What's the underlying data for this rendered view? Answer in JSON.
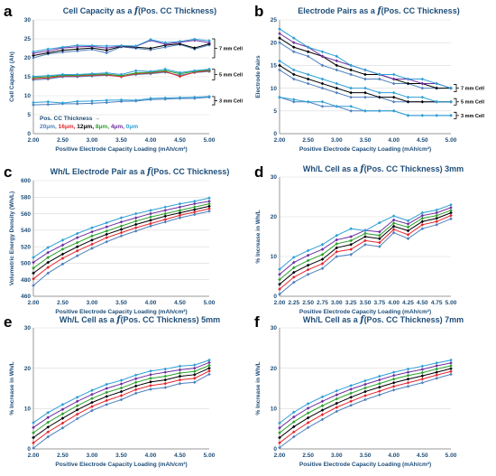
{
  "panel_letters": [
    "a",
    "b",
    "c",
    "d",
    "e",
    "f"
  ],
  "series_colors": {
    "20μm": "#4f81bd",
    "16μm": "#e3262f",
    "12μm": "#000000",
    "8μm": "#2ca02c",
    "4μm": "#7030a0",
    "0μm": "#2e9fd6"
  },
  "chart_data": [
    {
      "type": "line",
      "panel": "a",
      "title_prefix": "Cell Capacity as a ",
      "title_f": "f",
      "title_suffix": "(Pos. CC Thickness)",
      "xlabel": "Positive Electrode Capacity Loading (mAh/cm²)",
      "ylabel": "Cell Capacity (Ah)",
      "xlim": [
        2.0,
        5.0
      ],
      "ylim": [
        0,
        30
      ],
      "xticks": [
        "2.00",
        "2.50",
        "3.00",
        "3.50",
        "4.00",
        "4.50",
        "5.00"
      ],
      "yticks": [
        "0",
        "5",
        "10",
        "15",
        "20",
        "25",
        "30"
      ],
      "x": [
        2.0,
        2.25,
        2.5,
        2.75,
        3.0,
        3.25,
        3.5,
        3.75,
        4.0,
        4.25,
        4.5,
        4.75,
        5.0
      ],
      "series": [
        {
          "name": "20μm",
          "group": "3 mm Cell",
          "values": [
            7.6,
            7.7,
            7.9,
            7.9,
            8.0,
            8.2,
            8.5,
            8.6,
            9.0,
            9.1,
            9.3,
            9.3,
            9.6
          ]
        },
        {
          "name": "0μm",
          "group": "3 mm Cell",
          "values": [
            8.2,
            8.4,
            8.1,
            8.5,
            8.6,
            8.8,
            8.9,
            8.8,
            9.3,
            9.4,
            9.5,
            9.6,
            9.8
          ]
        },
        {
          "name": "20μm",
          "group": "5 mm Cell",
          "values": [
            14.2,
            14.4,
            15.0,
            15.0,
            15.2,
            15.4,
            15.1,
            15.6,
            15.8,
            16.2,
            15.4,
            16.1,
            16.4
          ]
        },
        {
          "name": "16μm",
          "group": "5 mm Cell",
          "values": [
            14.5,
            14.7,
            15.2,
            15.2,
            15.4,
            15.5,
            15.0,
            15.8,
            16.0,
            16.4,
            15.1,
            16.2,
            16.6
          ]
        },
        {
          "name": "8μm",
          "group": "5 mm Cell",
          "values": [
            14.8,
            15.0,
            15.4,
            15.4,
            15.6,
            15.7,
            15.3,
            16.0,
            16.2,
            16.6,
            15.8,
            16.4,
            16.8
          ]
        },
        {
          "name": "0μm",
          "group": "5 mm Cell",
          "values": [
            15.1,
            15.3,
            15.6,
            15.6,
            15.8,
            16.0,
            15.6,
            16.6,
            16.4,
            17.0,
            16.1,
            16.6,
            17.0
          ]
        },
        {
          "name": "20μm",
          "group": "7 mm Cell",
          "values": [
            20.0,
            21.0,
            21.5,
            21.8,
            22.2,
            21.3,
            22.9,
            22.5,
            22.1,
            22.8,
            23.5,
            22.3,
            23.4
          ]
        },
        {
          "name": "12μm",
          "group": "7 mm Cell",
          "values": [
            20.6,
            21.3,
            22.0,
            22.3,
            22.6,
            22.0,
            23.0,
            22.8,
            22.5,
            23.3,
            23.7,
            22.6,
            23.7
          ]
        },
        {
          "name": "4μm",
          "group": "7 mm Cell",
          "values": [
            21.2,
            21.8,
            22.6,
            22.9,
            23.0,
            22.6,
            23.1,
            23.0,
            24.6,
            23.6,
            24.1,
            24.6,
            24.0
          ]
        },
        {
          "name": "0μm",
          "group": "7 mm Cell",
          "values": [
            21.6,
            22.3,
            22.8,
            23.3,
            23.2,
            23.1,
            23.2,
            23.1,
            24.8,
            24.0,
            24.3,
            24.9,
            24.5
          ]
        }
      ],
      "brackets": [
        {
          "label": "7 mm Cell",
          "ymin": 20.0,
          "ymax": 25.0
        },
        {
          "label": "5 mm Cell",
          "ymin": 14.2,
          "ymax": 17.0
        },
        {
          "label": "3 mm Cell",
          "ymin": 7.6,
          "ymax": 9.8
        }
      ],
      "legend": {
        "heading": "Pos. CC Thickness →",
        "entries": [
          "20μm",
          "16μm",
          "12μm",
          "8μm",
          "4μm",
          "0μm"
        ],
        "placement": "lower-left"
      }
    },
    {
      "type": "line",
      "panel": "b",
      "title_prefix": "Electrode Pairs as a ",
      "title_f": "f",
      "title_suffix": "(Pos. CC Thickness)",
      "xlabel": "Positive Electrode Capacity Loading (mAh/cm²)",
      "ylabel": "Electrode Pairs",
      "xlim": [
        2.0,
        5.0
      ],
      "ylim": [
        0,
        25
      ],
      "xticks": [
        "2.00",
        "2.50",
        "3.00",
        "3.50",
        "4.00",
        "4.50",
        "5.00"
      ],
      "yticks": [
        "0",
        "5",
        "10",
        "15",
        "20",
        "25"
      ],
      "x": [
        2.0,
        2.25,
        2.5,
        2.75,
        3.0,
        3.25,
        3.5,
        3.75,
        4.0,
        4.25,
        4.5,
        4.75,
        5.0
      ],
      "series": [
        {
          "name": "20μm",
          "group": "3 mm Cell",
          "values": [
            8,
            7,
            7,
            6,
            6,
            5,
            5,
            5,
            5,
            4,
            4,
            4,
            4
          ]
        },
        {
          "name": "0μm",
          "group": "3 mm Cell",
          "values": [
            8,
            7.5,
            7,
            7,
            6,
            6,
            5,
            5,
            5,
            4,
            4,
            4,
            4
          ]
        },
        {
          "name": "20μm",
          "group": "5 mm Cell",
          "values": [
            14,
            12,
            11,
            10,
            9,
            8,
            8,
            8,
            7,
            7,
            7,
            7,
            7
          ]
        },
        {
          "name": "12μm",
          "group": "5 mm Cell",
          "values": [
            15,
            13,
            12,
            11,
            10,
            9,
            9,
            8,
            8,
            7,
            7,
            7,
            7
          ]
        },
        {
          "name": "0μm",
          "group": "5 mm Cell",
          "values": [
            16,
            14,
            13,
            12,
            11,
            10,
            10,
            9,
            9,
            8,
            8,
            7,
            7
          ]
        },
        {
          "name": "20μm",
          "group": "7 mm Cell",
          "values": [
            20,
            18,
            17,
            15,
            14,
            13,
            12,
            12,
            11,
            11,
            10,
            10,
            10
          ]
        },
        {
          "name": "12μm",
          "group": "7 mm Cell",
          "values": [
            21,
            19,
            18,
            17,
            15,
            14,
            13,
            13,
            12,
            11,
            11,
            10,
            10
          ]
        },
        {
          "name": "4μm",
          "group": "7 mm Cell",
          "values": [
            22,
            20,
            19,
            17,
            16,
            15,
            14,
            13,
            12,
            12,
            11,
            11,
            10
          ]
        },
        {
          "name": "0μm",
          "group": "7 mm Cell",
          "values": [
            23,
            21,
            19,
            18,
            17,
            15,
            14,
            13,
            13,
            12,
            12,
            11,
            10
          ]
        }
      ],
      "brackets": [
        {
          "label": "7 mm Cell",
          "ymin": 9.2,
          "ymax": 10.8
        },
        {
          "label": "5 mm Cell",
          "ymin": 6.3,
          "ymax": 7.7
        },
        {
          "label": "3 mm Cell",
          "ymin": 3.3,
          "ymax": 4.7
        }
      ]
    },
    {
      "type": "line",
      "panel": "c",
      "title_prefix": "Wh/L Electrode Pair as a ",
      "title_f": "f",
      "title_suffix": "(Pos. CC Thickness)",
      "xlabel": "Positive Electrode Capacity Loading (mAh/cm²)",
      "ylabel": "Volumetric Energy Density (Wh/L)",
      "xlim": [
        2.0,
        5.0
      ],
      "ylim": [
        460,
        600
      ],
      "xticks": [
        "2.00",
        "2.50",
        "3.00",
        "3.50",
        "4.00",
        "4.50",
        "5.00"
      ],
      "yticks": [
        "460",
        "480",
        "500",
        "520",
        "540",
        "560",
        "580",
        "600"
      ],
      "x": [
        2.0,
        2.25,
        2.5,
        2.75,
        3.0,
        3.25,
        3.5,
        3.75,
        4.0,
        4.25,
        4.5,
        4.75,
        5.0
      ],
      "series": [
        {
          "name": "20μm",
          "values": [
            473,
            488,
            499,
            509,
            518,
            526,
            533,
            539,
            545,
            550,
            555,
            559,
            563
          ]
        },
        {
          "name": "16μm",
          "values": [
            481,
            495,
            506,
            515,
            523,
            531,
            537,
            543,
            548,
            553,
            558,
            562,
            566
          ]
        },
        {
          "name": "12μm",
          "values": [
            488,
            501,
            511,
            520,
            528,
            535,
            541,
            547,
            552,
            557,
            561,
            565,
            569
          ]
        },
        {
          "name": "8μm",
          "values": [
            494,
            507,
            517,
            525,
            533,
            539,
            545,
            551,
            556,
            560,
            564,
            568,
            572
          ]
        },
        {
          "name": "4μm",
          "values": [
            501,
            513,
            522,
            531,
            538,
            544,
            550,
            555,
            560,
            564,
            568,
            572,
            575
          ]
        },
        {
          "name": "0μm",
          "values": [
            507,
            519,
            528,
            536,
            543,
            549,
            555,
            560,
            564,
            568,
            572,
            575,
            579
          ]
        }
      ]
    },
    {
      "type": "line",
      "panel": "d",
      "title_prefix": "Wh/L Cell as a ",
      "title_f": "f",
      "title_suffix": "(Pos. CC Thickness) 3mm",
      "xlabel": "Positive Electrode Capacity Loading (mAh/cm²)",
      "ylabel": "% Increase in Wh/L",
      "xlim": [
        2.0,
        5.0
      ],
      "ylim": [
        0,
        30
      ],
      "xticks": [
        "2.00",
        "2.25",
        "2.50",
        "2.75",
        "3.00",
        "3.25",
        "3.50",
        "3.75",
        "4.00",
        "4.25",
        "4.50",
        "4.75",
        "5.00"
      ],
      "yticks": [
        "0",
        "10",
        "20",
        "30"
      ],
      "x": [
        2.0,
        2.25,
        2.5,
        2.75,
        3.0,
        3.25,
        3.5,
        3.75,
        4.0,
        4.25,
        4.5,
        4.75,
        5.0
      ],
      "series": [
        {
          "name": "20μm",
          "values": [
            0.5,
            3.5,
            5.5,
            7.0,
            10.0,
            10.5,
            13.0,
            12.5,
            16.0,
            14.5,
            17.0,
            18.0,
            19.5
          ]
        },
        {
          "name": "16μm",
          "values": [
            1.8,
            4.8,
            6.7,
            8.2,
            11.2,
            11.8,
            14.0,
            13.5,
            16.8,
            15.5,
            18.0,
            18.8,
            20.3
          ]
        },
        {
          "name": "12μm",
          "values": [
            3.0,
            6.0,
            7.8,
            9.3,
            12.2,
            13.0,
            15.0,
            14.5,
            17.6,
            16.5,
            18.8,
            19.6,
            21.0
          ]
        },
        {
          "name": "8μm",
          "values": [
            4.2,
            7.2,
            9.0,
            10.5,
            13.2,
            14.0,
            15.8,
            15.3,
            18.4,
            17.4,
            19.6,
            20.3,
            21.6
          ]
        },
        {
          "name": "4μm",
          "values": [
            5.5,
            8.5,
            10.3,
            11.8,
            14.2,
            15.0,
            16.6,
            16.2,
            19.2,
            18.2,
            20.3,
            21.0,
            22.3
          ]
        },
        {
          "name": "0μm",
          "values": [
            6.8,
            9.8,
            11.5,
            13.0,
            15.3,
            17.0,
            16.5,
            18.5,
            20.2,
            19.0,
            21.0,
            21.7,
            23.0
          ]
        }
      ]
    },
    {
      "type": "line",
      "panel": "e",
      "title_prefix": "Wh/L Cell as a ",
      "title_f": "f",
      "title_suffix": "(Pos. CC Thickness) 5mm",
      "xlabel": "Positive Electrode Capacity Loading (mAh/cm²)",
      "ylabel": "% Increase in Wh/L",
      "xlim": [
        2.0,
        5.0
      ],
      "ylim": [
        0,
        30
      ],
      "xticks": [
        "2.00",
        "2.50",
        "3.00",
        "3.50",
        "4.00",
        "4.50",
        "5.00"
      ],
      "yticks": [
        "0",
        "10",
        "20",
        "30"
      ],
      "x": [
        2.0,
        2.25,
        2.5,
        2.75,
        3.0,
        3.25,
        3.5,
        3.75,
        4.0,
        4.25,
        4.5,
        4.75,
        5.0
      ],
      "series": [
        {
          "name": "20μm",
          "values": [
            0.2,
            3.0,
            5.2,
            7.5,
            9.5,
            11.0,
            12.2,
            13.8,
            14.8,
            15.2,
            16.2,
            16.5,
            18.5
          ]
        },
        {
          "name": "16μm",
          "values": [
            1.5,
            4.2,
            6.4,
            8.6,
            10.5,
            12.0,
            13.2,
            14.7,
            15.7,
            16.2,
            17.1,
            17.5,
            19.3
          ]
        },
        {
          "name": "12μm",
          "values": [
            2.8,
            5.4,
            7.6,
            9.7,
            11.5,
            13.0,
            14.2,
            15.6,
            16.6,
            17.1,
            18.0,
            18.4,
            20.0
          ]
        },
        {
          "name": "8μm",
          "values": [
            4.0,
            6.6,
            8.7,
            10.7,
            12.5,
            14.0,
            15.1,
            16.5,
            17.5,
            18.0,
            18.8,
            19.2,
            20.7
          ]
        },
        {
          "name": "4μm",
          "values": [
            5.3,
            7.8,
            9.8,
            11.8,
            13.5,
            15.0,
            16.1,
            17.4,
            18.4,
            19.0,
            19.6,
            20.0,
            21.4
          ]
        },
        {
          "name": "0μm",
          "values": [
            6.5,
            9.0,
            11.0,
            12.8,
            14.5,
            16.0,
            17.0,
            18.3,
            19.3,
            19.8,
            20.5,
            20.8,
            22.0
          ]
        }
      ]
    },
    {
      "type": "line",
      "panel": "f",
      "title_prefix": "Wh/L Cell as a ",
      "title_f": "f",
      "title_suffix": "(Pos. CC Thickness) 7mm",
      "xlabel": "Positive Electrode Capacity Loading (mAh/cm²)",
      "ylabel": "% Increase in Wh/L",
      "xlim": [
        2.0,
        5.0
      ],
      "ylim": [
        0,
        30
      ],
      "xticks": [
        "2.00",
        "2.50",
        "3.00",
        "3.50",
        "4.00",
        "4.50",
        "5.00"
      ],
      "yticks": [
        "0",
        "10",
        "20",
        "30"
      ],
      "x": [
        2.0,
        2.25,
        2.5,
        2.75,
        3.0,
        3.25,
        3.5,
        3.75,
        4.0,
        4.25,
        4.5,
        4.75,
        5.0
      ],
      "series": [
        {
          "name": "20μm",
          "values": [
            0.3,
            3.0,
            5.3,
            7.3,
            9.3,
            10.8,
            12.2,
            13.4,
            14.6,
            15.5,
            16.4,
            17.5,
            18.5
          ]
        },
        {
          "name": "16μm",
          "values": [
            1.5,
            4.2,
            6.5,
            8.5,
            10.3,
            11.8,
            13.2,
            14.3,
            15.5,
            16.4,
            17.3,
            18.3,
            19.2
          ]
        },
        {
          "name": "12μm",
          "values": [
            2.8,
            5.5,
            7.7,
            9.6,
            11.3,
            12.8,
            14.2,
            15.3,
            16.4,
            17.3,
            18.1,
            19.0,
            19.9
          ]
        },
        {
          "name": "8μm",
          "values": [
            4.0,
            6.7,
            8.9,
            10.7,
            12.4,
            13.8,
            15.1,
            16.2,
            17.3,
            18.2,
            18.9,
            19.8,
            20.6
          ]
        },
        {
          "name": "4μm",
          "values": [
            5.2,
            7.9,
            10.1,
            11.8,
            13.4,
            14.8,
            16.0,
            17.1,
            18.2,
            19.0,
            19.7,
            20.6,
            21.3
          ]
        },
        {
          "name": "0μm",
          "values": [
            6.4,
            9.1,
            11.2,
            12.9,
            14.4,
            15.7,
            16.9,
            18.0,
            19.0,
            19.8,
            20.5,
            21.3,
            22.0
          ]
        }
      ]
    }
  ]
}
